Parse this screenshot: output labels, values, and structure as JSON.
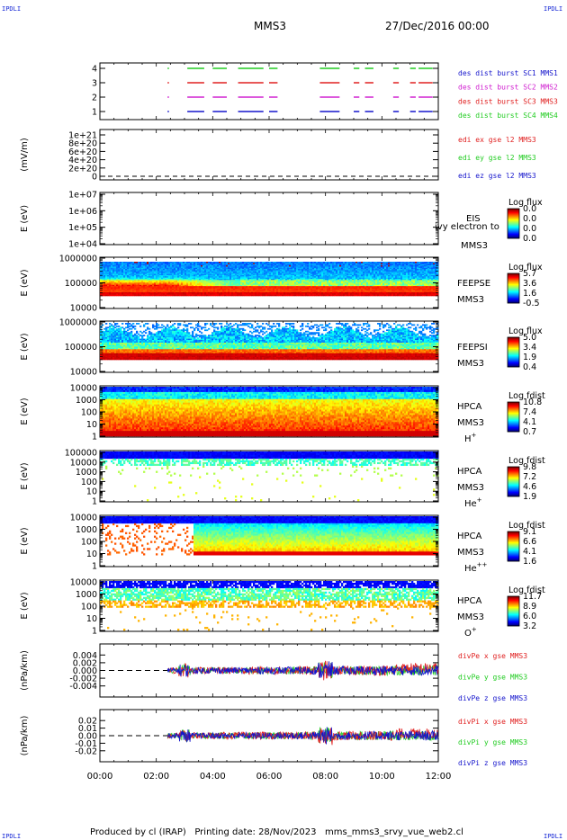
{
  "corner_label": "IPDLI",
  "header": {
    "mission": "MMS3",
    "datetime": "27/Dec/2016 00:00"
  },
  "footer": "Produced by cl (IRAP)   Printing date: 28/Nov/2023   mms_mms3_srvy_vue_web2.cl",
  "colors": {
    "red": "#e02020",
    "green": "#22cc22",
    "blue": "#1515cc",
    "magenta": "#d020d0"
  },
  "chart_data": [
    {
      "type": "scatter",
      "panel": "burst-availability",
      "yticks": [
        "4",
        "3",
        "2",
        "1"
      ],
      "legend": [
        {
          "text": "des dist burst SC1 MMS1",
          "color": "#1515cc"
        },
        {
          "text": "des dist burst SC2 MMS2",
          "color": "#d020d0"
        },
        {
          "text": "des dist burst SC3 MMS3",
          "color": "#e02020"
        },
        {
          "text": "des dist burst SC4 MMS4",
          "color": "#22cc22"
        }
      ],
      "intervals_hours": [
        [
          2.4,
          2.45
        ],
        [
          3.1,
          3.7
        ],
        [
          4.0,
          4.5
        ],
        [
          4.9,
          5.8
        ],
        [
          6.0,
          6.3
        ],
        [
          7.8,
          8.5
        ],
        [
          9.0,
          9.2
        ],
        [
          9.4,
          9.7
        ],
        [
          10.4,
          10.6
        ],
        [
          11.0,
          11.2
        ],
        [
          11.3,
          11.8
        ]
      ]
    },
    {
      "type": "line",
      "panel": "edi-electric-field",
      "ylabel": "(mV/m)",
      "yticks": [
        "1e+21",
        "8e+20",
        "6e+20",
        "4e+20",
        "2e+20",
        "0"
      ],
      "legend": [
        {
          "text": "edi ex gse l2 MMS3",
          "color": "#e02020"
        },
        {
          "text": "edi ey gse l2 MMS3",
          "color": "#22cc22"
        },
        {
          "text": "edi ez gse l2 MMS3",
          "color": "#1515cc"
        }
      ]
    },
    {
      "type": "heatmap",
      "panel": "eis",
      "ylabel": "E (eV)",
      "yticks": [
        "1e+07",
        "1e+06",
        "1e+05",
        "1e+04"
      ],
      "instrument": [
        "EIS",
        "MMS3"
      ],
      "overlay_text": "ivy electron to",
      "colorbar": {
        "title": "Log flux",
        "ticks": [
          "0.0",
          "0.0",
          "0.0",
          "0.0"
        ]
      }
    },
    {
      "type": "heatmap",
      "panel": "feepse",
      "ylabel": "E (eV)",
      "yticks": [
        "1000000",
        "100000",
        "10000"
      ],
      "instrument": [
        "FEEPSE",
        "MMS3"
      ],
      "colorbar": {
        "title": "Log flux",
        "ticks": [
          "5.7",
          "3.6",
          "1.6",
          "-0.5"
        ]
      }
    },
    {
      "type": "heatmap",
      "panel": "feepsi",
      "ylabel": "E (eV)",
      "yticks": [
        "1000000",
        "100000",
        "10000"
      ],
      "instrument": [
        "FEEPSI",
        "MMS3"
      ],
      "colorbar": {
        "title": "Log flux",
        "ticks": [
          "5.0",
          "3.4",
          "1.9",
          "0.4"
        ]
      }
    },
    {
      "type": "heatmap",
      "panel": "hpca-h",
      "ylabel": "E (eV)",
      "yticks": [
        "10000",
        "1000",
        "100",
        "10",
        "1"
      ],
      "instrument": [
        "HPCA",
        "MMS3"
      ],
      "species": "H",
      "charge": "+",
      "colorbar": {
        "title": "Log fdist",
        "ticks": [
          "10.8",
          "7.4",
          "4.1",
          "0.7"
        ]
      }
    },
    {
      "type": "heatmap",
      "panel": "hpca-he",
      "ylabel": "E (eV)",
      "yticks": [
        "100000",
        "10000",
        "1000",
        "100",
        "10",
        "1"
      ],
      "instrument": [
        "HPCA",
        "MMS3"
      ],
      "species": "He",
      "charge": "+",
      "colorbar": {
        "title": "Log fdist",
        "ticks": [
          "9.8",
          "7.2",
          "4.6",
          "1.9"
        ]
      }
    },
    {
      "type": "heatmap",
      "panel": "hpca-hepp",
      "ylabel": "E (eV)",
      "yticks": [
        "10000",
        "1000",
        "100",
        "10",
        "1"
      ],
      "instrument": [
        "HPCA",
        "MMS3"
      ],
      "species": "He",
      "charge": "++",
      "colorbar": {
        "title": "Log fdist",
        "ticks": [
          "9.1",
          "6.6",
          "4.1",
          "1.6"
        ]
      }
    },
    {
      "type": "heatmap",
      "panel": "hpca-o",
      "ylabel": "E (eV)",
      "yticks": [
        "10000",
        "1000",
        "100",
        "10",
        "1"
      ],
      "instrument": [
        "HPCA",
        "MMS3"
      ],
      "species": "O",
      "charge": "+",
      "colorbar": {
        "title": "Log fdist",
        "ticks": [
          "11.7",
          "8.9",
          "6.0",
          "3.2"
        ]
      }
    },
    {
      "type": "line",
      "panel": "divpe",
      "ylabel": "(nPa/km)",
      "yticks": [
        "0.004",
        "0.002",
        "0.000",
        "-0.002",
        "-0.004"
      ],
      "ylim": [
        -0.005,
        0.005
      ],
      "data_start_hours": 2.4,
      "legend": [
        {
          "text": "divPe x gse MMS3",
          "color": "#e02020"
        },
        {
          "text": "divPe y gse MMS3",
          "color": "#22cc22"
        },
        {
          "text": "divPe z gse MMS3",
          "color": "#1515cc"
        }
      ]
    },
    {
      "type": "line",
      "panel": "divpi",
      "ylabel": "(nPa/km)",
      "yticks": [
        "0.02",
        "0.01",
        "0.00",
        "-0.01",
        "-0.02"
      ],
      "ylim": [
        -0.025,
        0.025
      ],
      "data_start_hours": 2.4,
      "legend": [
        {
          "text": "divPi x gse MMS3",
          "color": "#e02020"
        },
        {
          "text": "divPi y gse MMS3",
          "color": "#22cc22"
        },
        {
          "text": "divPi z gse MMS3",
          "color": "#1515cc"
        }
      ]
    }
  ],
  "time_axis": {
    "ticks": [
      "00:00",
      "02:00",
      "04:00",
      "06:00",
      "08:00",
      "10:00",
      "12:00"
    ],
    "range_hours": [
      0,
      12
    ]
  }
}
